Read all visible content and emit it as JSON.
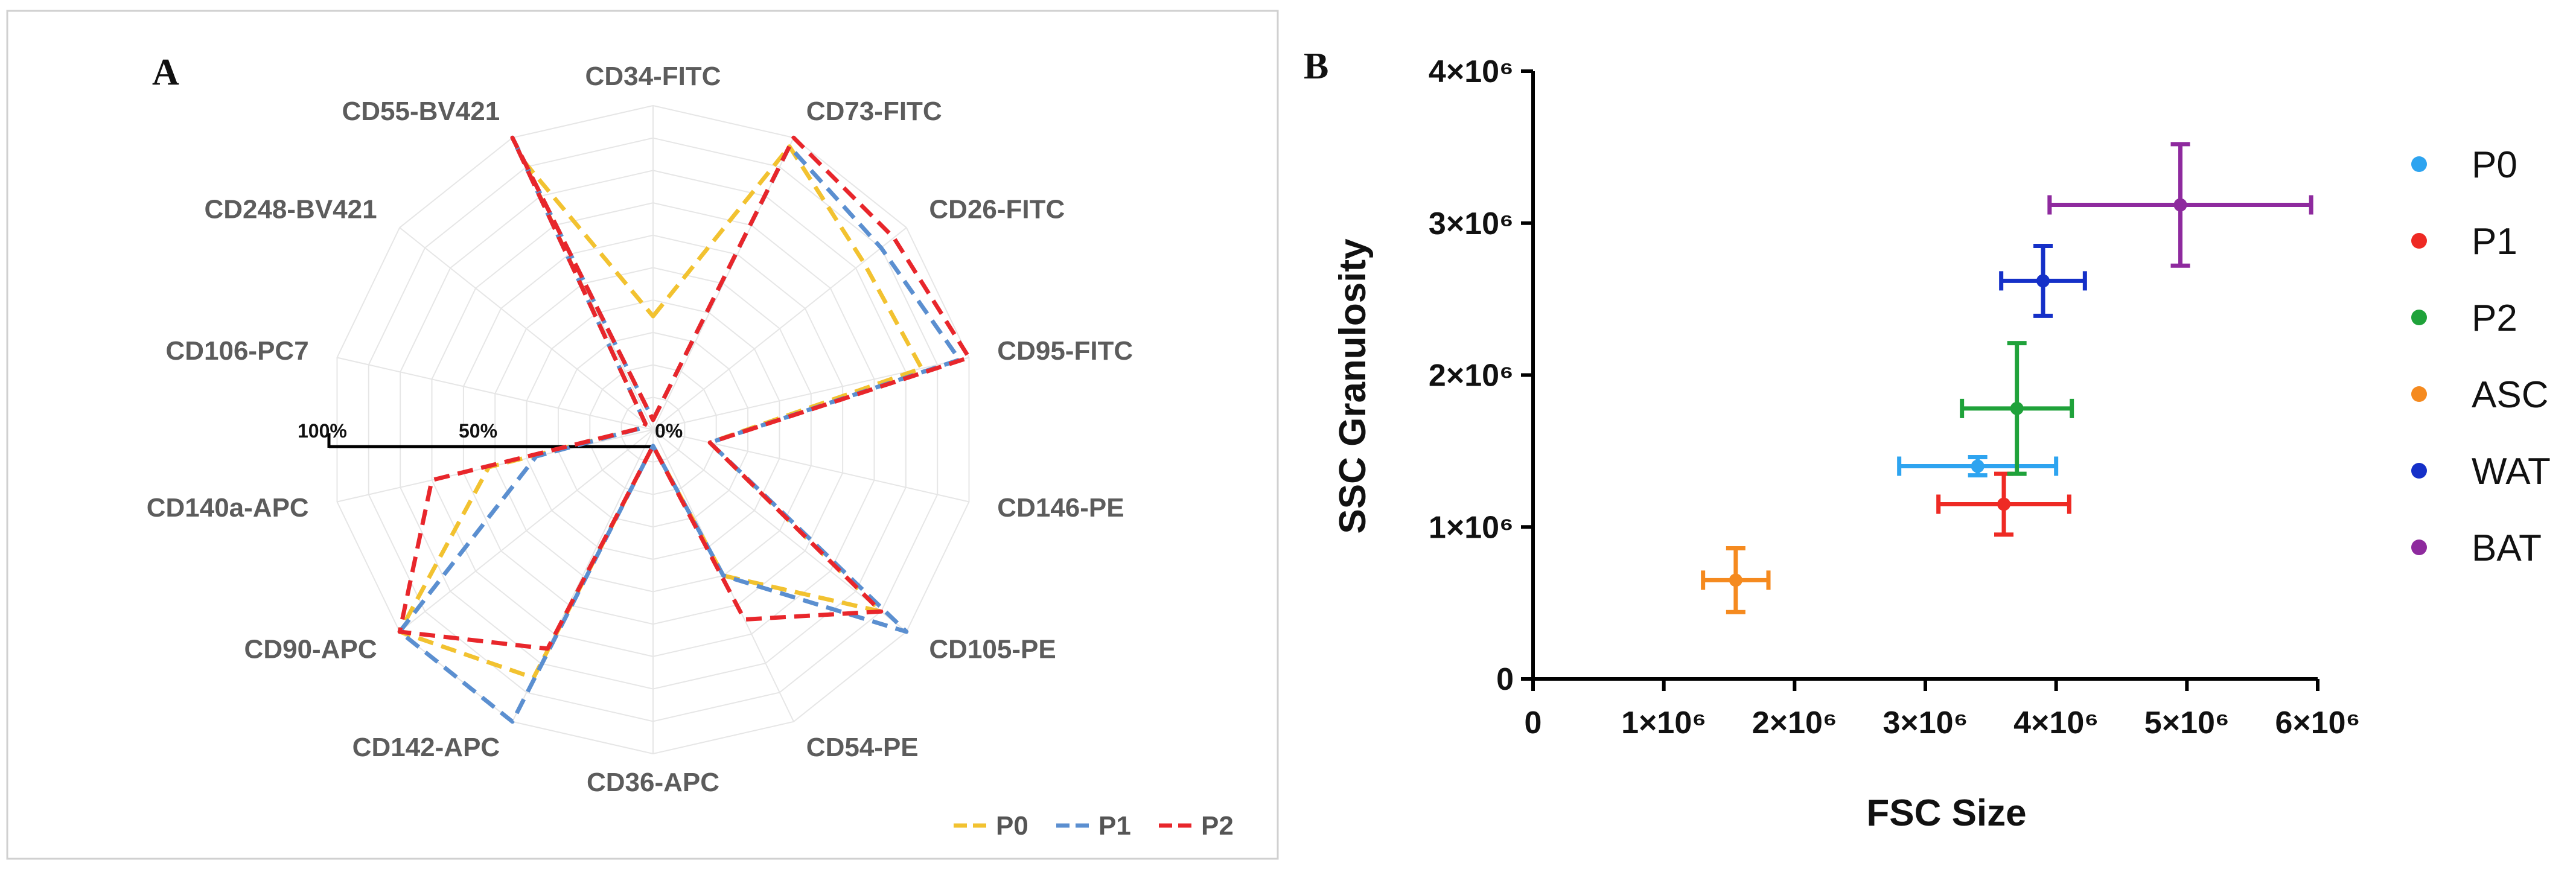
{
  "panelA": {
    "letter": "A",
    "chart_data": {
      "type": "radar",
      "axes": [
        "CD34-FITC",
        "CD73-FITC",
        "CD26-FITC",
        "CD95-FITC",
        "CD146-PE",
        "CD105-PE",
        "CD54-PE",
        "CD36-APC",
        "CD142-APC",
        "CD90-APC",
        "CD140a-APC",
        "CD106-PC7",
        "CD248-BV421",
        "CD55-BV421"
      ],
      "rlim": [
        0,
        100
      ],
      "scale_labels": [
        "100%",
        "50%",
        "0%"
      ],
      "series": [
        {
          "name": "P0",
          "color": "#F2C230",
          "values": [
            35,
            97,
            83,
            85,
            18,
            90,
            50,
            5,
            85,
            100,
            52,
            3,
            3,
            92
          ]
        },
        {
          "name": "P1",
          "color": "#5B8FD0",
          "values": [
            3,
            97,
            90,
            97,
            18,
            100,
            50,
            5,
            100,
            100,
            37,
            3,
            3,
            100
          ]
        },
        {
          "name": "P2",
          "color": "#E8262B",
          "values": [
            3,
            100,
            95,
            100,
            18,
            90,
            65,
            5,
            75,
            100,
            70,
            3,
            3,
            100
          ]
        }
      ],
      "legend_position": "bottom-right"
    }
  },
  "panelB": {
    "letter": "B",
    "chart_data": {
      "type": "scatter",
      "xlabel": "FSC Size",
      "ylabel": "SSC Granulosity",
      "xlim": [
        0,
        6000000
      ],
      "ylim": [
        0,
        4000000
      ],
      "xticks": [
        {
          "value": 0,
          "label": "0"
        },
        {
          "value": 1000000,
          "label": "1×10⁶"
        },
        {
          "value": 2000000,
          "label": "2×10⁶"
        },
        {
          "value": 3000000,
          "label": "3×10⁶"
        },
        {
          "value": 4000000,
          "label": "4×10⁶"
        },
        {
          "value": 5000000,
          "label": "5×10⁶"
        },
        {
          "value": 6000000,
          "label": "6×10⁶"
        }
      ],
      "yticks": [
        {
          "value": 0,
          "label": "0"
        },
        {
          "value": 1000000,
          "label": "1×10⁶"
        },
        {
          "value": 2000000,
          "label": "2×10⁶"
        },
        {
          "value": 3000000,
          "label": "3×10⁶"
        },
        {
          "value": 4000000,
          "label": "4×10⁶"
        }
      ],
      "series": [
        {
          "name": "P0",
          "color": "#2EA4F0",
          "x": 3400000,
          "y": 1400000,
          "xerr": 600000,
          "yerr": 60000
        },
        {
          "name": "P1",
          "color": "#EE2A24",
          "x": 3600000,
          "y": 1150000,
          "xerr": 500000,
          "yerr": 200000
        },
        {
          "name": "P2",
          "color": "#1FA23A",
          "x": 3700000,
          "y": 1780000,
          "xerr": 420000,
          "yerr": 430000
        },
        {
          "name": "ASC",
          "color": "#F58A1F",
          "x": 1550000,
          "y": 650000,
          "xerr": 250000,
          "yerr": 210000
        },
        {
          "name": "WAT",
          "color": "#1530C8",
          "x": 3900000,
          "y": 2620000,
          "xerr": 320000,
          "yerr": 230000
        },
        {
          "name": "BAT",
          "color": "#8E2A9E",
          "x": 4950000,
          "y": 3120000,
          "xerr": 1000000,
          "yerr": 400000
        }
      ],
      "legend_position": "right"
    }
  }
}
